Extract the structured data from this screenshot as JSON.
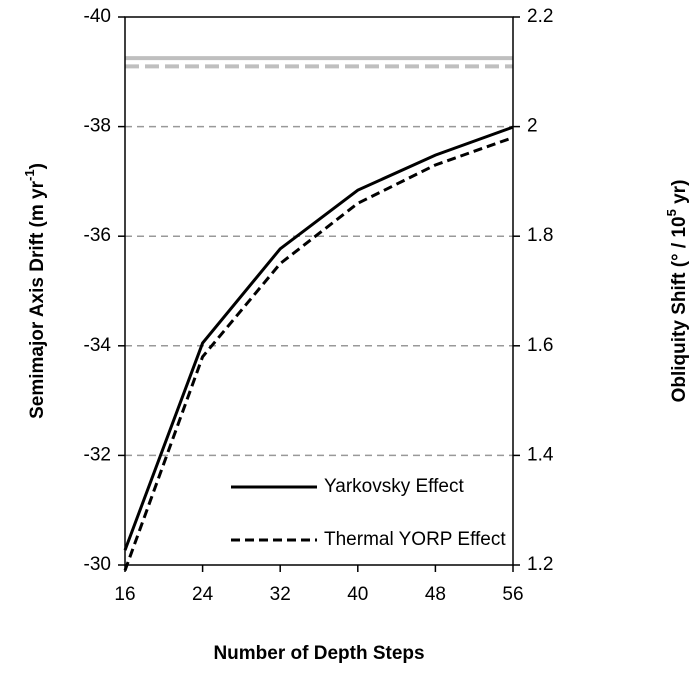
{
  "chart_data": {
    "type": "line",
    "x": [
      16,
      24,
      32,
      40,
      48,
      56
    ],
    "xlim": [
      16,
      56
    ],
    "xticks": [
      16,
      24,
      32,
      40,
      48,
      56
    ],
    "ylim": [
      -30,
      -40
    ],
    "yticks": [
      -40,
      -38,
      -36,
      -34,
      -32,
      -30
    ],
    "y2lim": [
      1.2,
      2.2
    ],
    "y2ticks": [
      1.2,
      1.4,
      1.6,
      1.8,
      2.0,
      2.2
    ],
    "xlabel": "Number of Depth Steps",
    "ylabel": {
      "text": "Semimajor Axis Drift (m yr",
      "sup": "-1",
      "end": ")"
    },
    "y2label": {
      "text": "Obliquity Shift (° / 10",
      "sup": "5",
      "end": " yr)"
    },
    "grid": true,
    "legend": "lower right",
    "series": [
      {
        "name": "Yarkovsky Effect",
        "color": "#000000",
        "dash": false,
        "axis": "y",
        "values": [
          -30.27,
          -34.05,
          -35.77,
          -36.84,
          -37.48,
          -37.99
        ]
      },
      {
        "name": "Thermal YORP Effect",
        "color": "#000000",
        "dash": true,
        "axis": "y2",
        "values": [
          1.19,
          1.58,
          1.75,
          1.86,
          1.93,
          1.98
        ]
      }
    ],
    "reference_lines": [
      {
        "axis": "y",
        "value": -39.25,
        "color": "#bfbfbf",
        "dash": false
      },
      {
        "axis": "y2",
        "value": 2.11,
        "color": "#bfbfbf",
        "dash": true
      }
    ]
  }
}
